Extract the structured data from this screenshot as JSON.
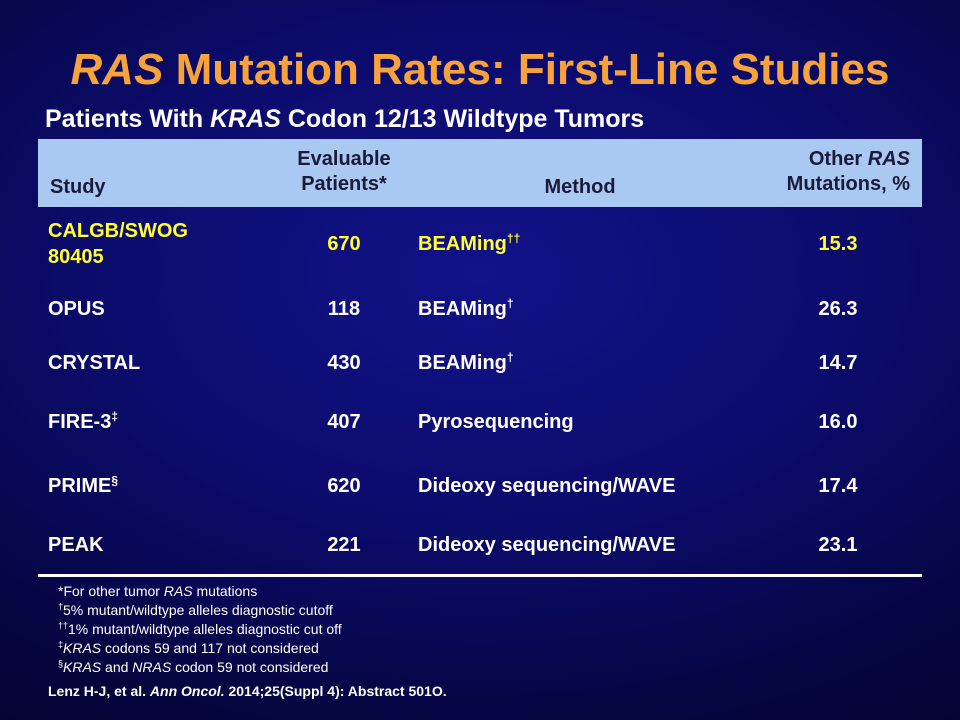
{
  "slide": {
    "title_italic": "RAS",
    "title_rest": " Mutation Rates: First-Line Studies",
    "subtitle_before": "Patients With ",
    "subtitle_italic": "KRAS",
    "subtitle_after": " Codon 12/13 Wildtype Tumors"
  },
  "table": {
    "headers": {
      "study": "Study",
      "evaluable_line1": "Evaluable",
      "evaluable_line2": "Patients*",
      "method": "Method",
      "other_line1_before": "Other ",
      "other_line1_italic": "RAS",
      "other_line2": "Mutations, %"
    },
    "rows": [
      {
        "study_line1": "CALGB/SWOG",
        "study_line2": "80405",
        "study_sup": "",
        "patients": "670",
        "method": "BEAMing",
        "method_sup": "††",
        "other": "15.3"
      },
      {
        "study_line1": "OPUS",
        "study_sup": "",
        "patients": "118",
        "method": "BEAMing",
        "method_sup": "†",
        "other": "26.3"
      },
      {
        "study_line1": "CRYSTAL",
        "study_sup": "",
        "patients": "430",
        "method": "BEAMing",
        "method_sup": "†",
        "other": "14.7"
      },
      {
        "study_line1": "FIRE-3",
        "study_sup": "‡",
        "patients": "407",
        "method": "Pyrosequencing",
        "method_sup": "",
        "other": "16.0"
      },
      {
        "study_line1": "PRIME",
        "study_sup": "§",
        "patients": "620",
        "method": "Dideoxy sequencing/WAVE",
        "method_sup": "",
        "other": "17.4"
      },
      {
        "study_line1": "PEAK",
        "study_sup": "",
        "patients": "221",
        "method": "Dideoxy sequencing/WAVE",
        "method_sup": "",
        "other": "23.1"
      }
    ]
  },
  "footnotes": {
    "f1_before": "*For other tumor ",
    "f1_italic": "RAS",
    "f1_after": " mutations",
    "f2_sup": "†",
    "f2_text": "5% mutant/wildtype  alleles diagnostic cutoff",
    "f3_sup": "††",
    "f3_text": "1% mutant/wildtype  alleles diagnostic cut off",
    "f4_sup": "‡",
    "f4_italic": "KRAS",
    "f4_text": " codons 59 and 117 not considered",
    "f5_sup": "§",
    "f5_italic": "KRAS",
    "f5_mid": " and ",
    "f5_italic2": "NRAS",
    "f5_text": " codon 59 not considered"
  },
  "citation": {
    "before": "Lenz H-J, et al. ",
    "journal": "Ann Oncol.",
    "after": " 2014;25(Suppl 4): Abstract 501O."
  }
}
